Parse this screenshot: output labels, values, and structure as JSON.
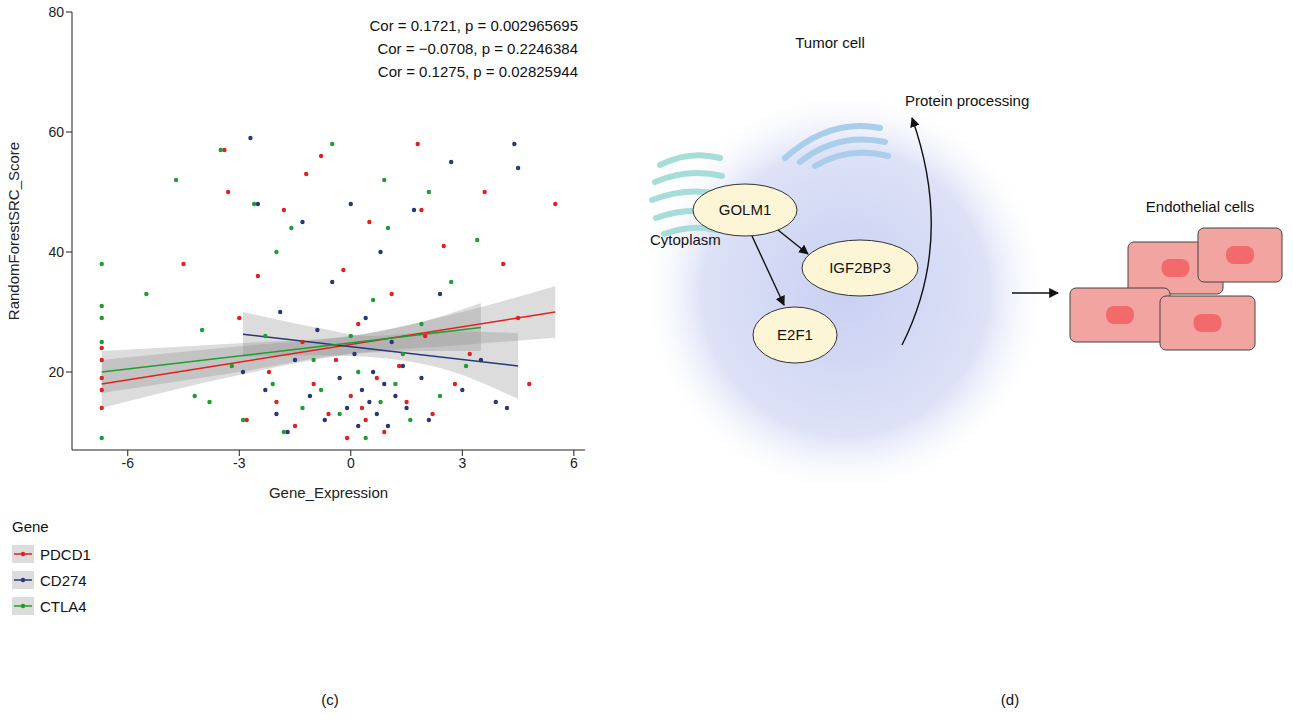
{
  "chart_data": {
    "type": "scatter",
    "panel_label": "(c)",
    "x_label": "Gene_Expression",
    "y_label": "RandomForestSRC_Score",
    "xlim": [
      -7.5,
      6.3
    ],
    "xticks": [
      -6,
      -3,
      0,
      3,
      6
    ],
    "ylim": [
      7,
      80
    ],
    "yticks": [
      20,
      40,
      60,
      80
    ],
    "grid": false,
    "legend": "bottom-left",
    "legend_title": "Gene",
    "marker": "circle",
    "annotations": [
      "Cor = 0.1721, p = 0.002965695",
      "Cor = −0.0708, p = 0.2246384",
      "Cor = 0.1275, p = 0.02825944"
    ],
    "series": [
      {
        "name": "PDCD1",
        "color": "#e0211d",
        "x": [
          -6.7,
          -6.7,
          -6.7,
          -6.7,
          -6.7,
          -4.5,
          -3.4,
          -3.3,
          -3.0,
          -2.8,
          -2.5,
          -2.2,
          -2,
          -1.8,
          -1.5,
          -1.3,
          -1,
          -0.8,
          -0.6,
          -0.4,
          -0.2,
          0,
          0.2,
          0.4,
          0.5,
          0.7,
          0.9,
          1.1,
          1.3,
          1.5,
          1.8,
          2,
          2.2,
          2.5,
          2.8,
          3.2,
          3.6,
          4.1,
          4.5,
          4.8,
          5.5,
          1.9,
          -1.2,
          0.3,
          -0.1
        ],
        "y": [
          17,
          22,
          14,
          24,
          19,
          38,
          57,
          50,
          29,
          12,
          36,
          20,
          15,
          47,
          11,
          25,
          18,
          56,
          13,
          22,
          37,
          16,
          28,
          12,
          45,
          19,
          10,
          33,
          21,
          15,
          58,
          26,
          13,
          41,
          18,
          23,
          50,
          38,
          29,
          18,
          48,
          47,
          53,
          14,
          9
        ],
        "trend": {
          "x": [
            -6.7,
            5.5
          ],
          "y": [
            18,
            30
          ]
        },
        "band": {
          "x": [
            -6.7,
            -3,
            0,
            3,
            5.5
          ],
          "lower": [
            14,
            19.5,
            23,
            24.5,
            25.7
          ],
          "upper": [
            22,
            24.3,
            26,
            30,
            34.3
          ]
        }
      },
      {
        "name": "CD274",
        "color": "#27387a",
        "x": [
          -2.9,
          -2.7,
          -2.5,
          -2.3,
          -2,
          -1.9,
          -1.7,
          -1.5,
          -1.3,
          -1.1,
          -0.9,
          -0.7,
          -0.5,
          -0.3,
          -0.1,
          0,
          0.1,
          0.2,
          0.3,
          0.4,
          0.5,
          0.6,
          0.7,
          0.8,
          0.9,
          1,
          1.1,
          1.2,
          1.4,
          1.5,
          1.7,
          1.9,
          2.1,
          2.4,
          2.7,
          3,
          3.5,
          3.9,
          4.2,
          4.4,
          4.5
        ],
        "y": [
          20,
          59,
          48,
          17,
          13,
          30,
          10,
          22,
          45,
          16,
          27,
          12,
          35,
          19,
          14,
          48,
          23,
          11,
          17,
          29,
          15,
          20,
          13,
          40,
          18,
          11,
          25,
          16,
          21,
          14,
          47,
          19,
          12,
          33,
          55,
          17,
          22,
          15,
          14,
          58,
          54
        ],
        "trend": {
          "x": [
            -2.9,
            4.5
          ],
          "y": [
            26.3,
            21
          ]
        },
        "band": {
          "x": [
            -2.9,
            -1,
            0.5,
            2.5,
            4.5
          ],
          "lower": [
            22.5,
            22.8,
            22.5,
            20.5,
            15.5
          ],
          "upper": [
            30,
            27.5,
            26,
            26.8,
            26.5
          ]
        }
      },
      {
        "name": "CTLA4",
        "color": "#1f9e2f",
        "x": [
          -6.7,
          -6.7,
          -6.7,
          -6.7,
          -6.7,
          -5.5,
          -4.7,
          -4.2,
          -3.8,
          -3.5,
          -3.2,
          -2.9,
          -2.6,
          -2.3,
          -2.1,
          -1.8,
          -1.6,
          -1.3,
          -1,
          -0.8,
          -0.5,
          -0.3,
          0,
          0.2,
          0.4,
          0.6,
          0.8,
          1,
          1.2,
          1.4,
          1.6,
          1.9,
          2.1,
          2.4,
          2.7,
          3.1,
          3.4,
          -4,
          -2,
          0.9
        ],
        "y": [
          38,
          31,
          29,
          9,
          25,
          33,
          52,
          16,
          15,
          57,
          21,
          12,
          48,
          26,
          18,
          10,
          44,
          14,
          22,
          17,
          58,
          13,
          26,
          20,
          9,
          32,
          15,
          44,
          18,
          23,
          12,
          28,
          50,
          16,
          35,
          21,
          42,
          27,
          40,
          52
        ],
        "trend": {
          "x": [
            -6.7,
            3.5
          ],
          "y": [
            20,
            27.4
          ]
        },
        "band": {
          "x": [
            -6.7,
            -3,
            0,
            2,
            3.5
          ],
          "lower": [
            16.5,
            20,
            23,
            23.5,
            23.5
          ],
          "upper": [
            23.5,
            24.8,
            26,
            28.5,
            31.5
          ]
        }
      }
    ]
  },
  "diagram": {
    "panel_label": "(d)",
    "title": "Tumor cell",
    "region_label": "Cytoplasm",
    "process_label": "Protein processing",
    "target_label": "Endothelial cells",
    "nodes": [
      {
        "label": "GOLM1"
      },
      {
        "label": "IGF2BP3"
      },
      {
        "label": "E2F1"
      }
    ],
    "edges": [
      {
        "from": "GOLM1",
        "to": "IGF2BP3"
      },
      {
        "from": "GOLM1",
        "to": "E2F1"
      },
      {
        "from": "E2F1",
        "to": "Protein processing"
      },
      {
        "from": "Tumor cell",
        "to": "Endothelial cells"
      }
    ]
  }
}
